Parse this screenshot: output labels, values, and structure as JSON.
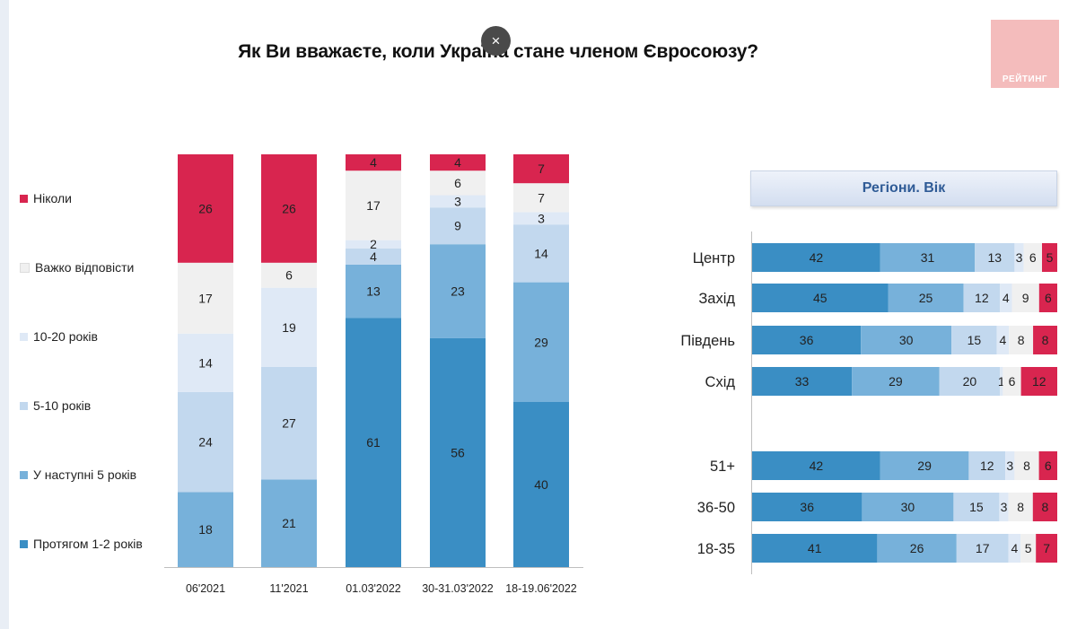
{
  "title": "Як Ви вважаєте, коли Україна стане членом Євросоюзу?",
  "close_label": "×",
  "logo_text": "РЕЙТИНГ",
  "regions_header": "Регіони. Вік",
  "colors": {
    "never": "#d8254f",
    "hard": "#f0f0f0",
    "y10_20": "#dfe9f6",
    "y5_10": "#c2d8ee",
    "next5": "#77b1da",
    "y1_2": "#3a8ec4"
  },
  "legend": [
    {
      "label": "Ніколи",
      "color": "#d8254f"
    },
    {
      "label": "Важко відповісти",
      "color": "#f0f0f0"
    },
    {
      "label": "10-20 років",
      "color": "#dfe9f6"
    },
    {
      "label": "5-10 років",
      "color": "#c2d8ee"
    },
    {
      "label": "У наступні 5 років",
      "color": "#77b1da"
    },
    {
      "label": "Протягом 1-2 років",
      "color": "#3a8ec4"
    }
  ],
  "chart_data": [
    {
      "type": "bar",
      "orientation": "vertical",
      "stacked": true,
      "categories": [
        "06'2021",
        "11'2021",
        "01.03'2022",
        "30-31.03'2022",
        "18-19.06'2022"
      ],
      "series": [
        {
          "name": "Протягом 1-2 років",
          "color": "#3a8ec4",
          "values": [
            null,
            null,
            61,
            56,
            40
          ]
        },
        {
          "name": "У наступні 5 років",
          "color": "#77b1da",
          "values": [
            18,
            21,
            13,
            23,
            29
          ]
        },
        {
          "name": "5-10 років",
          "color": "#c2d8ee",
          "values": [
            24,
            27,
            4,
            9,
            14
          ]
        },
        {
          "name": "10-20 років",
          "color": "#dfe9f6",
          "values": [
            14,
            19,
            2,
            3,
            3
          ]
        },
        {
          "name": "Важко відповісти",
          "color": "#f0f0f0",
          "values": [
            17,
            6,
            17,
            6,
            7
          ]
        },
        {
          "name": "Ніколи",
          "color": "#d8254f",
          "values": [
            26,
            26,
            4,
            4,
            7
          ]
        }
      ]
    },
    {
      "type": "bar",
      "orientation": "horizontal",
      "stacked": true,
      "title": "Регіони. Вік",
      "categories": [
        "Центр",
        "Захід",
        "Південь",
        "Схід",
        "51+",
        "36-50",
        "18-35"
      ],
      "series": [
        {
          "name": "Протягом 1-2 років",
          "color": "#3a8ec4",
          "values": [
            42,
            45,
            36,
            33,
            42,
            36,
            41
          ]
        },
        {
          "name": "У наступні 5 років",
          "color": "#77b1da",
          "values": [
            31,
            25,
            30,
            29,
            29,
            30,
            26
          ]
        },
        {
          "name": "5-10 років",
          "color": "#c2d8ee",
          "values": [
            13,
            12,
            15,
            20,
            12,
            15,
            17
          ]
        },
        {
          "name": "10-20 років",
          "color": "#dfe9f6",
          "values": [
            3,
            4,
            4,
            1,
            3,
            3,
            4
          ]
        },
        {
          "name": "Важко відповісти",
          "color": "#f0f0f0",
          "values": [
            6,
            9,
            8,
            6,
            8,
            8,
            5
          ]
        },
        {
          "name": "Ніколи",
          "color": "#d8254f",
          "values": [
            5,
            6,
            8,
            12,
            6,
            8,
            7
          ]
        }
      ]
    }
  ]
}
